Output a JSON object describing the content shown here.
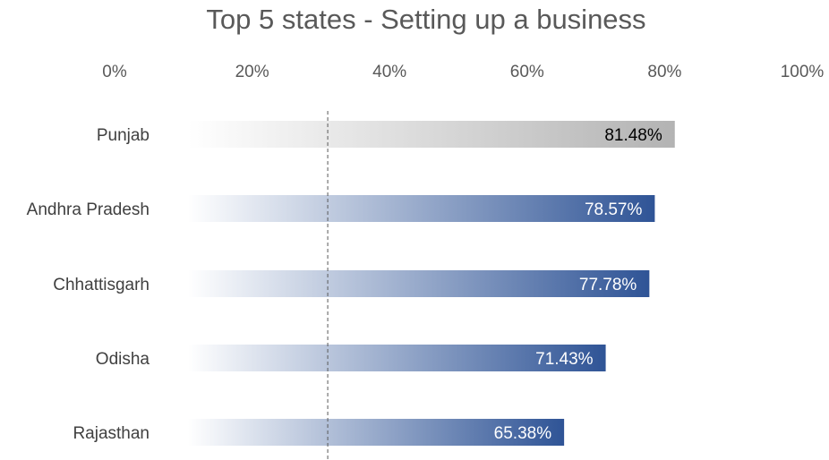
{
  "chart_data": {
    "type": "bar",
    "orientation": "horizontal",
    "title": "Top 5 states - Setting up a business",
    "xlabel": "",
    "ylabel": "",
    "xlim": [
      0,
      100
    ],
    "x_ticks": [
      "0%",
      "20%",
      "40%",
      "60%",
      "80%",
      "100%"
    ],
    "x_axis_position": "top",
    "grid": false,
    "legend": "none",
    "reference_line": {
      "value": 31,
      "style": "dashed"
    },
    "categories": [
      "Punjab",
      "Andhra Pradesh",
      "Chhattisgarh",
      "Odisha",
      "Rajasthan"
    ],
    "values": [
      81.48,
      78.57,
      77.78,
      71.43,
      65.38
    ],
    "data_labels": [
      "81.48%",
      "78.57%",
      "77.78%",
      "71.43%",
      "65.38%"
    ],
    "colors": {
      "highlight_bar": "#b3b3b3",
      "bar": "#2f5496",
      "fade": "#ffffff",
      "highlight_label": "#000000",
      "label": "#ffffff"
    }
  }
}
